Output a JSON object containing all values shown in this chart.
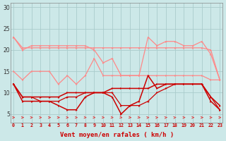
{
  "x": [
    0,
    1,
    2,
    3,
    4,
    5,
    6,
    7,
    8,
    9,
    10,
    11,
    12,
    13,
    14,
    15,
    16,
    17,
    18,
    19,
    20,
    21,
    22,
    23
  ],
  "line_rafales_upper": [
    23,
    20.5,
    20.5,
    20.5,
    20.5,
    20.5,
    20.5,
    20.5,
    20.5,
    20.5,
    20.5,
    20.5,
    20.5,
    20.5,
    20.5,
    20.5,
    20.5,
    20.5,
    20.5,
    20.5,
    20.5,
    20.5,
    20,
    13
  ],
  "line_rafales_peak": [
    23,
    20,
    21,
    21,
    21,
    21,
    21,
    21,
    21,
    20,
    17,
    18,
    14,
    14,
    14,
    23,
    21,
    22,
    22,
    21,
    21,
    22,
    19,
    13
  ],
  "line_rafales_lower": [
    15,
    13,
    15,
    15,
    15,
    12,
    14,
    12,
    14,
    18,
    14,
    14,
    14,
    14,
    14,
    14,
    14,
    14,
    14,
    14,
    14,
    14,
    13,
    13
  ],
  "line_moy_upper": [
    12,
    9,
    9,
    9,
    9,
    9,
    10,
    10,
    10,
    10,
    10,
    11,
    11,
    11,
    11,
    11,
    12,
    12,
    12,
    12,
    12,
    12,
    9,
    7
  ],
  "line_moy_lower": [
    12,
    8,
    8,
    8,
    8,
    7,
    6,
    6,
    9,
    10,
    10,
    9,
    5,
    7,
    8,
    14,
    11,
    12,
    12,
    12,
    12,
    12,
    8,
    6
  ],
  "line_base": [
    12,
    9,
    9,
    8,
    8,
    8,
    9,
    9,
    10,
    10,
    10,
    10,
    7,
    7,
    7,
    8,
    10,
    11,
    12,
    12,
    12,
    12,
    9,
    6
  ],
  "arrow_angles": [
    0,
    0,
    0,
    0,
    0,
    0,
    -10,
    -10,
    -20,
    -20,
    -20,
    -20,
    -30,
    -30,
    -30,
    30,
    30,
    30,
    30,
    0,
    0,
    0,
    0,
    0
  ],
  "bg_color": "#cce8e8",
  "grid_color": "#aacccc",
  "line_pink_color": "#ff8888",
  "line_dark_color": "#cc0000",
  "arrow_color": "#dd4444",
  "xlabel": "Vent moyen/en rafales ( km/h )",
  "ylabel_ticks": [
    5,
    10,
    15,
    20,
    25,
    30
  ],
  "ylim": [
    3,
    31
  ],
  "xlim": [
    -0.3,
    23.3
  ]
}
